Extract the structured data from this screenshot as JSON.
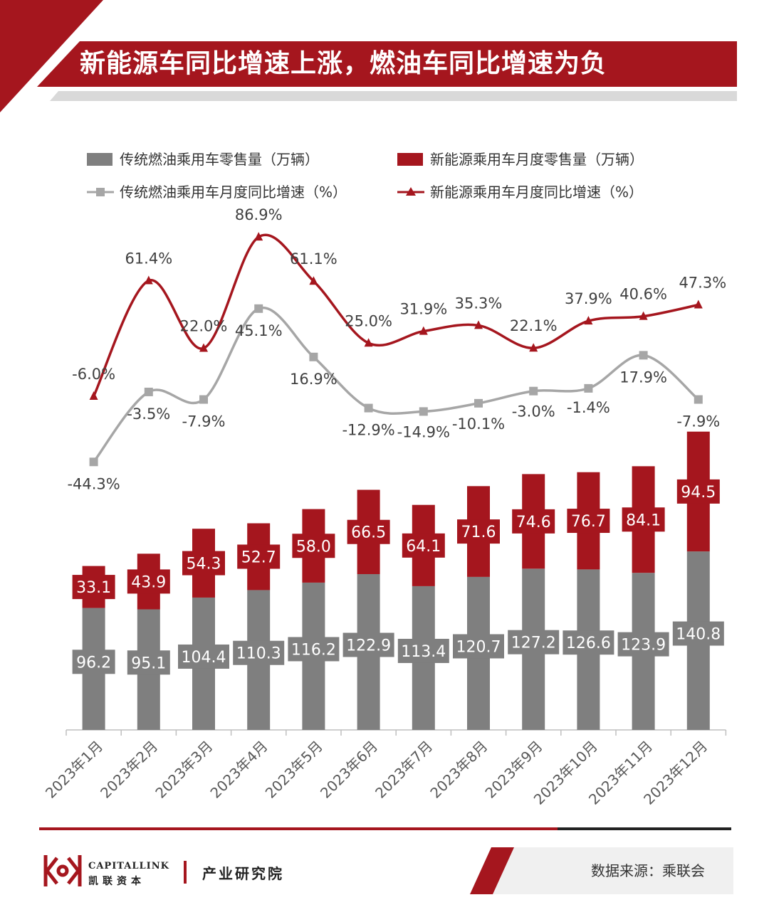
{
  "title": "新能源车同比增速上涨，燃油车同比增速为负",
  "colors": {
    "accent": "#a5161e",
    "gray_bar": "#7f7f7f",
    "gray_line": "#a6a6a6",
    "axis": "#bfbfbf"
  },
  "chart_data": {
    "type": "bar",
    "subtype": "stacked bar + line combo",
    "categories": [
      "2023年1月",
      "2023年2月",
      "2023年3月",
      "2023年4月",
      "2023年5月",
      "2023年6月",
      "2023年7月",
      "2023年8月",
      "2023年9月",
      "2023年10月",
      "2023年11月",
      "2023年12月"
    ],
    "series": [
      {
        "name": "传统燃油乘用车零售量（万辆）",
        "kind": "bar",
        "values": [
          96.2,
          95.1,
          104.4,
          110.3,
          116.2,
          122.9,
          113.4,
          120.7,
          127.2,
          126.6,
          123.9,
          140.8
        ]
      },
      {
        "name": "新能源乘用车月度零售量（万辆）",
        "kind": "bar",
        "values": [
          33.1,
          43.9,
          54.3,
          52.7,
          58.0,
          66.5,
          64.1,
          71.6,
          74.6,
          76.7,
          84.1,
          94.5
        ]
      },
      {
        "name": "传统燃油乘用车月度同比增速（%）",
        "kind": "line",
        "values": [
          -44.3,
          -3.5,
          -7.9,
          45.1,
          16.9,
          -12.9,
          -14.9,
          -10.1,
          -3.0,
          -1.4,
          17.9,
          -7.9
        ]
      },
      {
        "name": "新能源乘用车月度同比增速（%）",
        "kind": "line",
        "values": [
          -6.0,
          61.4,
          22.0,
          86.9,
          61.1,
          25.0,
          31.9,
          35.3,
          22.1,
          37.9,
          40.6,
          47.3
        ]
      }
    ],
    "bar_labels": {
      "ice": [
        "96.2",
        "95.1",
        "104.4",
        "110.3",
        "116.2",
        "122.9",
        "113.4",
        "120.7",
        "127.2",
        "126.6",
        "123.9",
        "140.8"
      ],
      "nev": [
        "33.1",
        "43.9",
        "54.3",
        "52.7",
        "58.0",
        "66.5",
        "64.1",
        "71.6",
        "74.6",
        "76.7",
        "84.1",
        "94.5"
      ]
    },
    "line_labels": {
      "ice": [
        "-44.3%",
        "-3.5%",
        "-7.9%",
        "45.1%",
        "16.9%",
        "-12.9%",
        "-14.9%",
        "-10.1%",
        "-3.0%",
        "-1.4%",
        "17.9%",
        "-7.9%"
      ],
      "nev": [
        "-6.0%",
        "61.4%",
        "22.0%",
        "86.9%",
        "61.1%",
        "25.0%",
        "31.9%",
        "35.3%",
        "22.1%",
        "37.9%",
        "40.6%",
        "47.3%"
      ]
    },
    "legend_position": "top",
    "grid": false
  },
  "footer": {
    "brand_en": "CAPITALLINK",
    "brand_cn": "凯联资本",
    "institute": "产业研究院",
    "source": "数据来源：乘联会"
  }
}
